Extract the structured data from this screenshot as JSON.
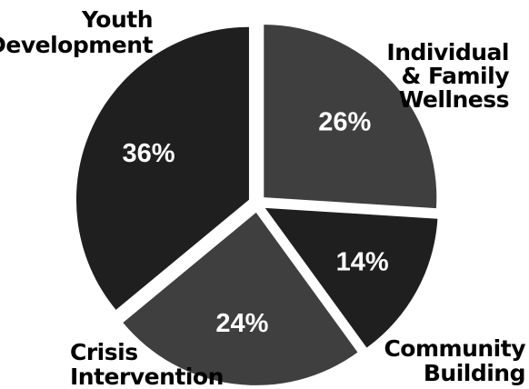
{
  "chart_data": {
    "type": "pie",
    "slices": [
      {
        "label": "Individual & Family Wellness",
        "label_lines": [
          "Individual",
          "& Family",
          "Wellness"
        ],
        "value": 26,
        "value_label": "26%",
        "color": "#3f3f3f"
      },
      {
        "label": "Community Building",
        "label_lines": [
          "Community",
          "Building"
        ],
        "value": 14,
        "value_label": "14%",
        "color": "#1f1f1f"
      },
      {
        "label": "Crisis Intervention",
        "label_lines": [
          "Crisis",
          "Intervention"
        ],
        "value": 24,
        "value_label": "24%",
        "color": "#3f3f3f"
      },
      {
        "label": "Youth Development",
        "label_lines": [
          "Youth",
          "Development"
        ],
        "value": 36,
        "value_label": "36%",
        "color": "#1f1f1f"
      }
    ],
    "exploded": true,
    "legend": "none"
  }
}
